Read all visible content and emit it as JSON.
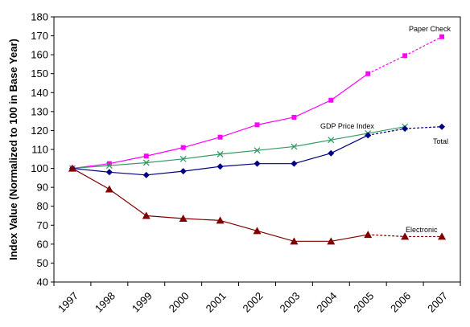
{
  "chart_data": {
    "type": "line",
    "ylabel": "Index Value (Normalized to 100 in Base Year)",
    "xlabel": "",
    "ylim": [
      40,
      180
    ],
    "yticks": [
      40,
      50,
      60,
      70,
      80,
      90,
      100,
      110,
      120,
      130,
      140,
      150,
      160,
      170,
      180
    ],
    "categories": [
      "1997",
      "1998",
      "1999",
      "2000",
      "2001",
      "2002",
      "2003",
      "2004",
      "2005",
      "2006",
      "2007"
    ],
    "grid": "horizontal",
    "legend": "none",
    "series": [
      {
        "name": "Paper Check",
        "color": "#ff00ff",
        "marker": "square",
        "values": [
          100,
          102.5,
          106.5,
          111,
          116.5,
          123,
          127,
          136,
          150,
          159.5,
          169.5
        ],
        "dashed_from_index": 8
      },
      {
        "name": "GDP Price Index",
        "color": "#339966",
        "marker": "x",
        "values": [
          100,
          101.5,
          103,
          105,
          107.5,
          109.5,
          111.5,
          115,
          118.5,
          122,
          null
        ],
        "dashed_from_index": 9
      },
      {
        "name": "Total",
        "color": "#000080",
        "marker": "diamond",
        "values": [
          100,
          98,
          96.5,
          98.5,
          101,
          102.5,
          102.5,
          108,
          117.5,
          121,
          122
        ],
        "dashed_from_index": 8
      },
      {
        "name": "Electronic",
        "color": "#800000",
        "marker": "triangle",
        "values": [
          100,
          89,
          75,
          73.5,
          72.5,
          67,
          61.5,
          61.5,
          65,
          64,
          64
        ],
        "dashed_from_index": 8
      }
    ]
  }
}
